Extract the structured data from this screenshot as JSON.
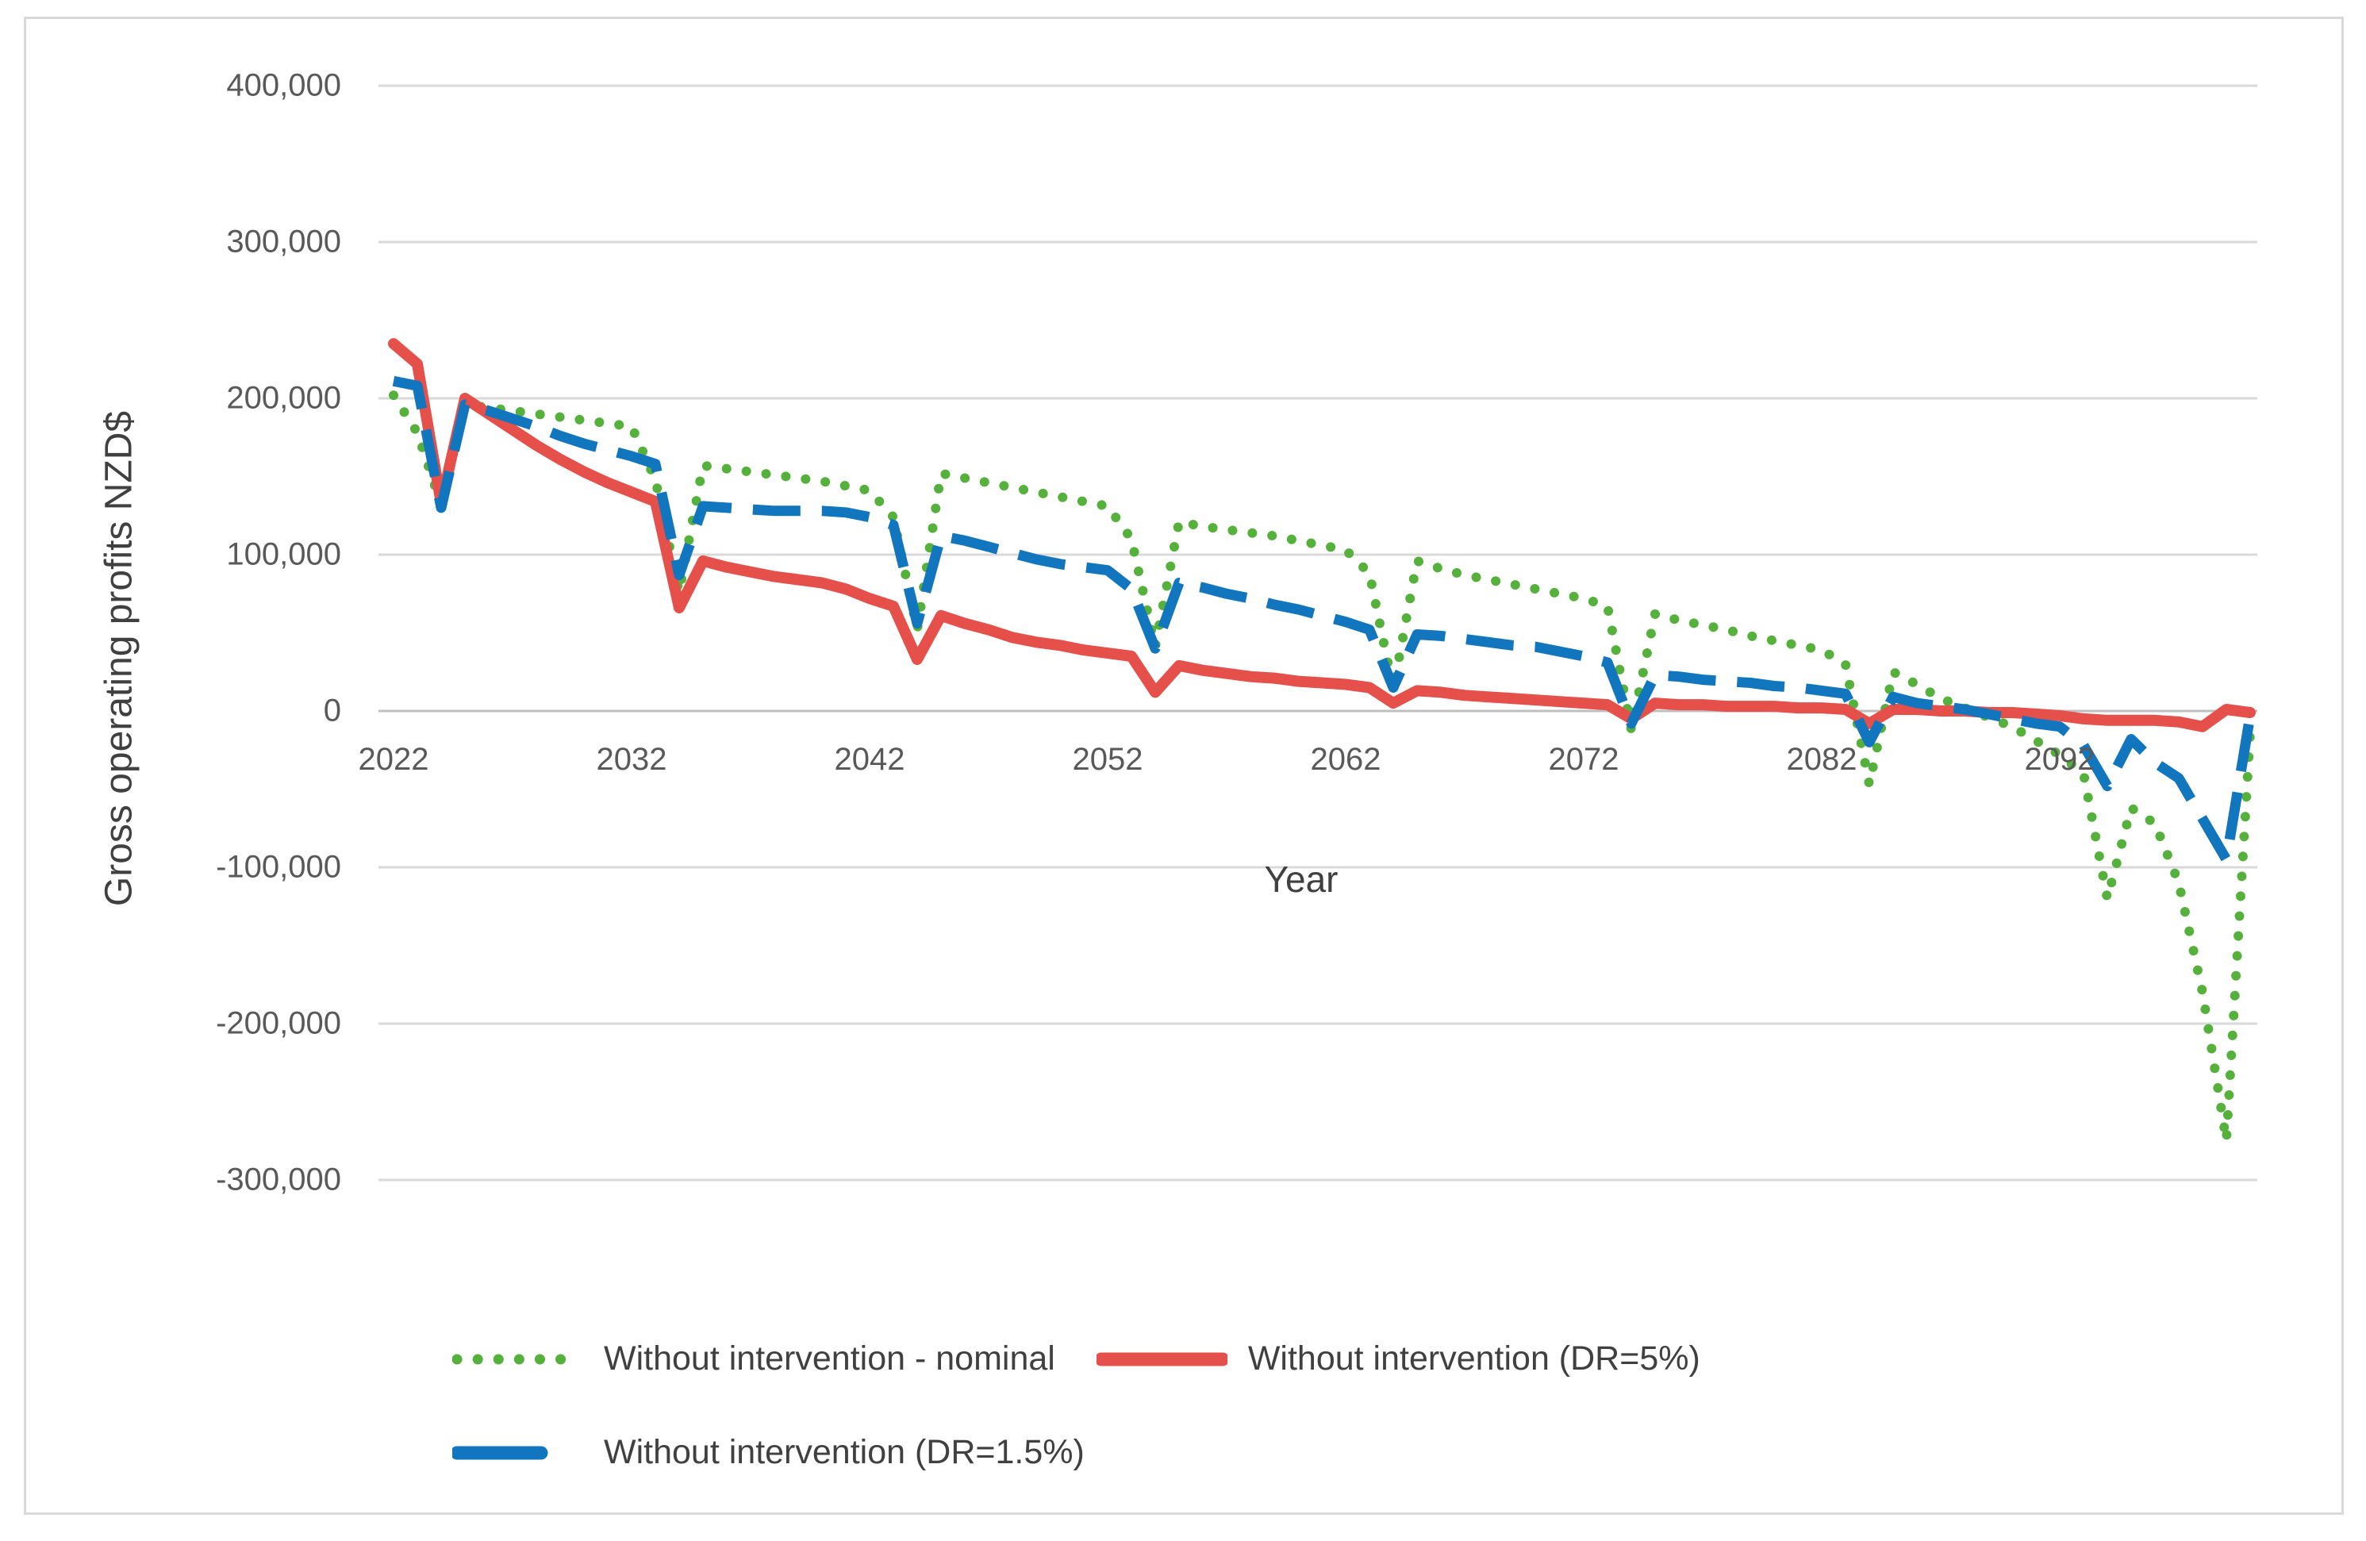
{
  "figure": {
    "background": "#ffffff",
    "border_color": "#d9d9d9"
  },
  "chart_data": {
    "type": "line",
    "title": "",
    "xlabel": "Year",
    "ylabel": "Gross operating profits NZD$",
    "grid": true,
    "legend_position": "bottom",
    "x_start_year": 2022,
    "x_end_year": 2100,
    "x_tick_years": [
      2022,
      2032,
      2042,
      2052,
      2062,
      2072,
      2082,
      2092
    ],
    "x_tick_labels": [
      "2022",
      "2032",
      "2042",
      "2052",
      "2062",
      "2072",
      "2082",
      "2092"
    ],
    "y_ticks": [
      400000,
      300000,
      200000,
      100000,
      0,
      -100000,
      -200000,
      -300000
    ],
    "y_tick_labels": [
      "400,000",
      "300,000",
      "200,000",
      "100,000",
      "0",
      "-100,000",
      "-200,000",
      "-300,000"
    ],
    "ylim": [
      -350000,
      450000
    ],
    "gridline_color": "#d9d9d9",
    "zero_line_color": "#bfbfbf",
    "series": [
      {
        "name": "Without intervention - nominal",
        "color": "#55b13c",
        "style": "dotted",
        "values": [
          202000,
          178000,
          132000,
          196000,
          194000,
          192000,
          190000,
          188000,
          186000,
          184000,
          182000,
          148000,
          76000,
          157000,
          155000,
          153000,
          151000,
          149000,
          147000,
          144000,
          141000,
          124000,
          52000,
          152000,
          149000,
          146000,
          143000,
          140000,
          137000,
          134000,
          131000,
          110000,
          41000,
          121000,
          118000,
          116000,
          114000,
          112000,
          109000,
          106000,
          103000,
          88000,
          14000,
          96000,
          91000,
          87000,
          84000,
          81000,
          78000,
          75000,
          72000,
          67000,
          -12000,
          62000,
          58000,
          55000,
          52000,
          48000,
          45000,
          42000,
          39000,
          30000,
          -47000,
          25000,
          17000,
          8000,
          2000,
          -4000,
          -10000,
          -19000,
          -28000,
          -40000,
          -120000,
          -62000,
          -72000,
          -110000,
          -180000,
          -275000,
          -14000
        ]
      },
      {
        "name": "Without intervention (DR=5%)",
        "color": "#e5504a",
        "style": "solid",
        "values": [
          235000,
          222000,
          133000,
          200000,
          190000,
          180000,
          170000,
          161000,
          153000,
          146000,
          140000,
          134000,
          66000,
          96000,
          92000,
          89000,
          86000,
          84000,
          82000,
          78000,
          72000,
          67000,
          33000,
          61000,
          56000,
          52000,
          47000,
          44000,
          42000,
          39000,
          37000,
          35000,
          12000,
          29000,
          26000,
          24000,
          22000,
          21000,
          19000,
          18000,
          17000,
          15000,
          5000,
          13000,
          12000,
          10000,
          9000,
          8000,
          7000,
          6000,
          5000,
          4000,
          -5000,
          5000,
          4000,
          4000,
          3000,
          3000,
          3000,
          2000,
          2000,
          1000,
          -8000,
          1000,
          1000,
          0,
          0,
          -1000,
          -1000,
          -2000,
          -3000,
          -5000,
          -6000,
          -6000,
          -6000,
          -7000,
          -10000,
          1000,
          -1000
        ]
      },
      {
        "name": "Without intervention (DR=1.5%)",
        "color": "#1176be",
        "style": "dashed",
        "values": [
          211000,
          208000,
          130000,
          196000,
          192000,
          187000,
          182000,
          176000,
          171000,
          167000,
          163000,
          158000,
          87000,
          131000,
          130000,
          129000,
          128000,
          128000,
          128000,
          127000,
          124000,
          119000,
          56000,
          112000,
          109000,
          105000,
          101000,
          97000,
          94000,
          92000,
          90000,
          78000,
          40000,
          82000,
          79000,
          75000,
          72000,
          68000,
          65000,
          61000,
          57000,
          52000,
          15000,
          49000,
          48000,
          46000,
          44000,
          42000,
          41000,
          38000,
          35000,
          31000,
          -8000,
          23000,
          22000,
          20000,
          19000,
          18000,
          16000,
          15000,
          13000,
          11000,
          -20000,
          9000,
          5000,
          3000,
          1000,
          -2000,
          -5000,
          -8000,
          -10000,
          -22000,
          -48000,
          -18000,
          -33000,
          -43000,
          -69000,
          -95000,
          -3000
        ]
      }
    ]
  }
}
